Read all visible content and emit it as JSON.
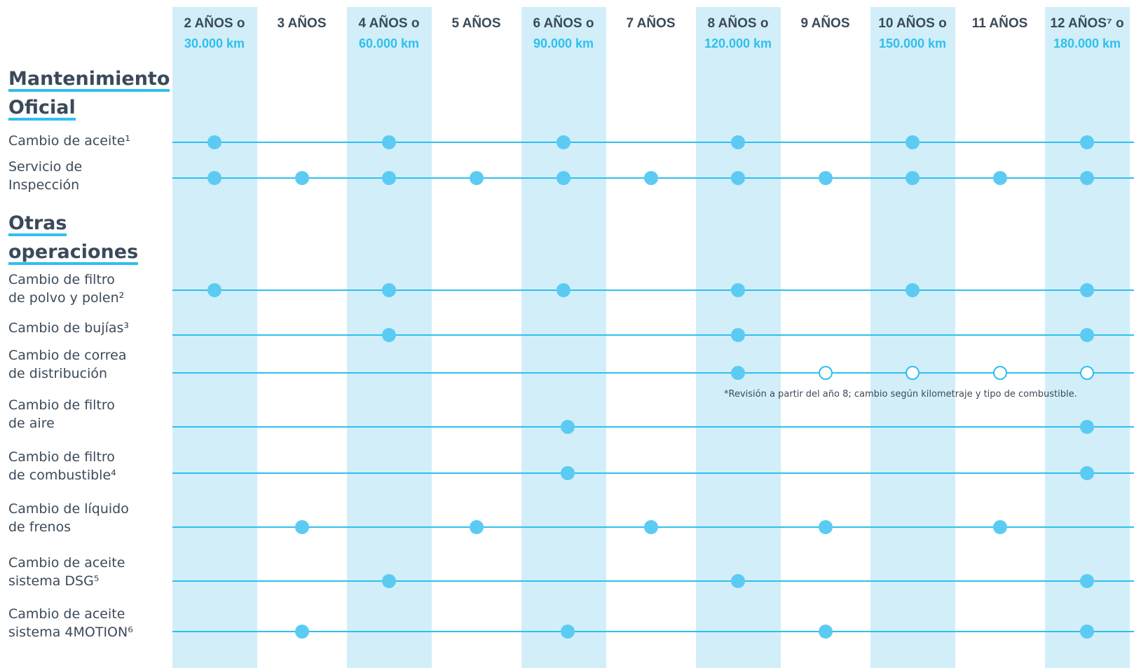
{
  "columns": [
    {
      "year": "2 AÑOS o",
      "km": "30.000 km",
      "shaded": true
    },
    {
      "year": "3 AÑOS",
      "km": "",
      "shaded": false
    },
    {
      "year": "4 AÑOS o",
      "km": "60.000 km",
      "shaded": true
    },
    {
      "year": "5 AÑOS",
      "km": "",
      "shaded": false
    },
    {
      "year": "6 AÑOS o",
      "km": "90.000 km",
      "shaded": true
    },
    {
      "year": "7 AÑOS",
      "km": "",
      "shaded": false
    },
    {
      "year": "8 AÑOS o",
      "km": "120.000 km",
      "shaded": true
    },
    {
      "year": "9 AÑOS",
      "km": "",
      "shaded": false
    },
    {
      "year": "10 AÑOS o",
      "km": "150.000 km",
      "shaded": true
    },
    {
      "year": "11 AÑOS",
      "km": "",
      "shaded": false
    },
    {
      "year": "12 AÑOS⁷ o",
      "km": "180.000 km",
      "shaded": true
    }
  ],
  "sections": [
    {
      "title_lines": [
        "Mantenimiento",
        "Oficial"
      ],
      "rows": [
        {
          "label_lines": [
            "Cambio de aceite¹"
          ],
          "marks": {
            "filled": [
              0,
              2,
              4,
              6,
              8,
              10
            ],
            "open": []
          }
        },
        {
          "label_lines": [
            "Servicio de",
            "Inspección"
          ],
          "marks": {
            "filled": [
              0,
              1,
              2,
              3,
              4,
              5,
              6,
              7,
              8,
              9,
              10
            ],
            "open": []
          }
        }
      ]
    },
    {
      "title_lines": [
        "Otras",
        "operaciones"
      ],
      "rows": [
        {
          "label_lines": [
            "Cambio de filtro",
            "de polvo y polen²"
          ],
          "marks": {
            "filled": [
              0,
              2,
              4,
              6,
              8,
              10
            ],
            "open": []
          }
        },
        {
          "label_lines": [
            "Cambio de bujías³"
          ],
          "marks": {
            "filled": [
              2,
              6,
              10
            ],
            "open": []
          }
        },
        {
          "label_lines": [
            "Cambio de correa",
            "de distribución"
          ],
          "marks": {
            "filled": [
              6
            ],
            "open": [
              7,
              8,
              9,
              10
            ]
          }
        },
        {
          "label_lines": [
            "Cambio de filtro",
            "de aire"
          ],
          "marks": {
            "filled": [
              4.05,
              10
            ],
            "open": []
          }
        },
        {
          "label_lines": [
            "Cambio de filtro",
            "de combustible⁴"
          ],
          "marks": {
            "filled": [
              4.05,
              10
            ],
            "open": []
          }
        },
        {
          "label_lines": [
            "Cambio de líquido",
            "de frenos"
          ],
          "marks": {
            "filled": [
              1,
              3,
              5,
              7,
              9
            ],
            "open": []
          }
        },
        {
          "label_lines": [
            "Cambio de aceite",
            "sistema DSG⁵"
          ],
          "marks": {
            "filled": [
              2,
              6,
              10
            ],
            "open": []
          }
        },
        {
          "label_lines": [
            "Cambio de aceite",
            "sistema 4MOTION⁶"
          ],
          "marks": {
            "filled": [
              1,
              4.05,
              7,
              10
            ],
            "open": []
          }
        }
      ]
    }
  ],
  "note": "*Revisión a partir del año 8; cambio según kilometraje y tipo de combustible.",
  "colors": {
    "band": "#d2eef9",
    "line": "#2ec0ee",
    "dot": "#5ccbf3",
    "text": "#3b4a5a",
    "accent": "#2ec0ee"
  }
}
